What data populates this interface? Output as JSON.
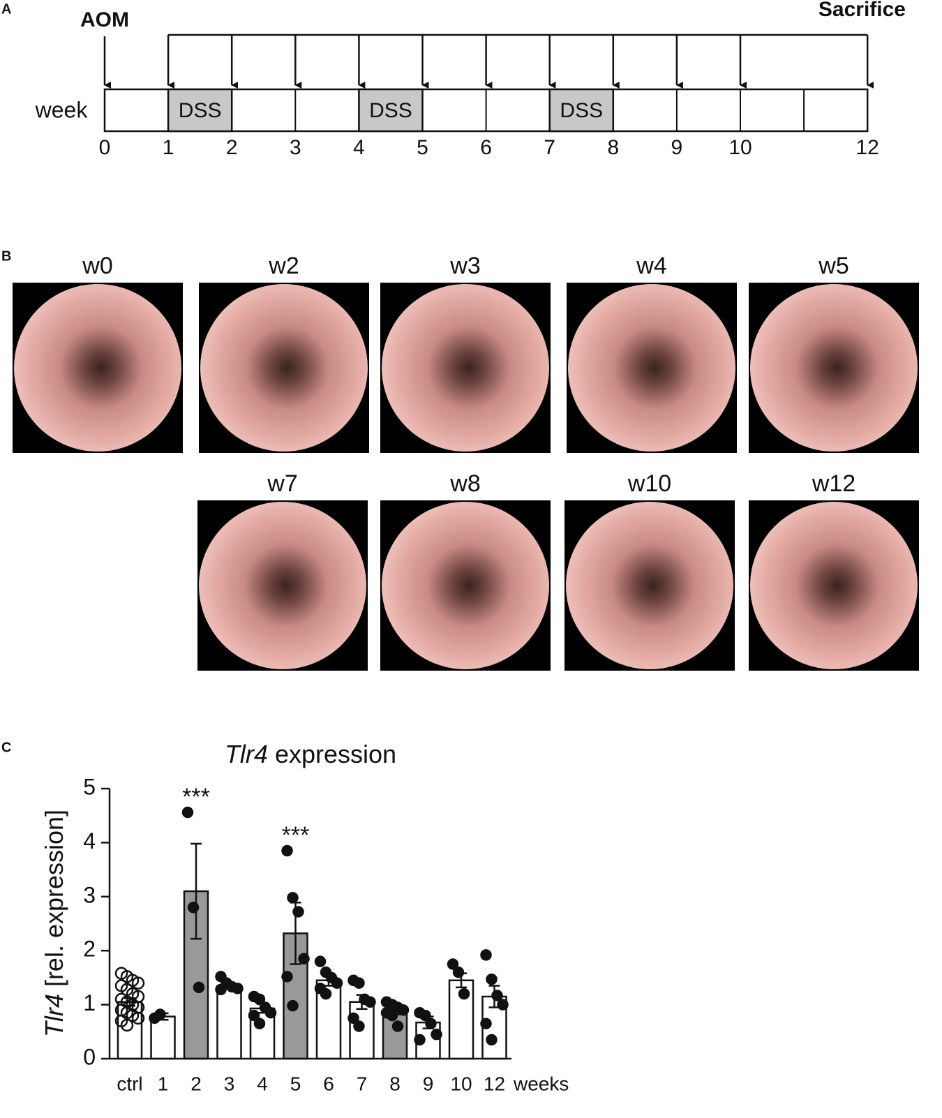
{
  "panel_labels": [
    "A",
    "B",
    "C"
  ],
  "panel_a": {
    "start_label": "AOM",
    "end_label": "Sacrifice",
    "axis_label": "week",
    "dss_label": "DSS",
    "dss_weeks": [
      [
        1,
        2
      ],
      [
        4,
        5
      ],
      [
        7,
        8
      ]
    ],
    "weeks_total": 12,
    "ticks": [
      0,
      1,
      2,
      3,
      4,
      5,
      6,
      7,
      8,
      9,
      10,
      12
    ]
  },
  "panel_b": {
    "images": [
      {
        "label": "w0"
      },
      {
        "label": "w2"
      },
      {
        "label": "w3"
      },
      {
        "label": "w4"
      },
      {
        "label": "w5"
      },
      {
        "label": "w7"
      },
      {
        "label": "w8"
      },
      {
        "label": "w10"
      },
      {
        "label": "w12"
      }
    ]
  },
  "chart_data": {
    "type": "bar",
    "title": {
      "italic": "Tlr4",
      "rest": " expression"
    },
    "ylabel": {
      "italic": "Tlr4",
      "rest": " [rel. expression]"
    },
    "xlabel": "weeks",
    "categories": [
      "ctrl",
      "1",
      "2",
      "3",
      "4",
      "5",
      "6",
      "7",
      "8",
      "9",
      "10",
      "12"
    ],
    "values": [
      1.05,
      0.78,
      3.1,
      1.35,
      0.93,
      2.32,
      1.45,
      1.05,
      0.88,
      0.67,
      1.45,
      1.15
    ],
    "errors": [
      0.07,
      0.06,
      0.88,
      0.05,
      0.08,
      0.57,
      0.1,
      0.13,
      0.06,
      0.11,
      0.13,
      0.2
    ],
    "bar_colors": [
      "#ffffff",
      "#ffffff",
      "#999999",
      "#ffffff",
      "#ffffff",
      "#999999",
      "#ffffff",
      "#ffffff",
      "#999999",
      "#ffffff",
      "#ffffff",
      "#ffffff"
    ],
    "points": [
      [
        1.58,
        1.52,
        1.45,
        1.4,
        1.35,
        1.28,
        1.2,
        1.15,
        1.1,
        1.05,
        1.0,
        0.95,
        0.9,
        0.85,
        0.8,
        0.75,
        0.7,
        0.62
      ],
      [
        0.75,
        0.82
      ],
      [
        4.56,
        2.8,
        1.32
      ],
      [
        1.52,
        1.4,
        1.33,
        1.3,
        1.28
      ],
      [
        1.15,
        1.1,
        0.95,
        0.85,
        0.8,
        0.65
      ],
      [
        3.85,
        2.98,
        2.72,
        1.85,
        1.52,
        0.98
      ],
      [
        1.8,
        1.6,
        1.5,
        1.4,
        1.3,
        1.2
      ],
      [
        1.45,
        1.4,
        1.1,
        1.05,
        0.75,
        0.6
      ],
      [
        1.05,
        1.0,
        0.95,
        0.9,
        0.85,
        0.8,
        0.6
      ],
      [
        0.85,
        0.8,
        0.65,
        0.45,
        0.35
      ],
      [
        1.75,
        1.6,
        1.2
      ],
      [
        1.92,
        1.47,
        1.17,
        1.0,
        0.65,
        0.35
      ]
    ],
    "open_points": [
      "ctrl"
    ],
    "annotations": [
      {
        "text": "***",
        "x": "2"
      },
      {
        "text": "***",
        "x": "5"
      }
    ],
    "ylim": [
      0,
      5
    ],
    "yticks": [
      0,
      1,
      2,
      3,
      4,
      5
    ]
  }
}
